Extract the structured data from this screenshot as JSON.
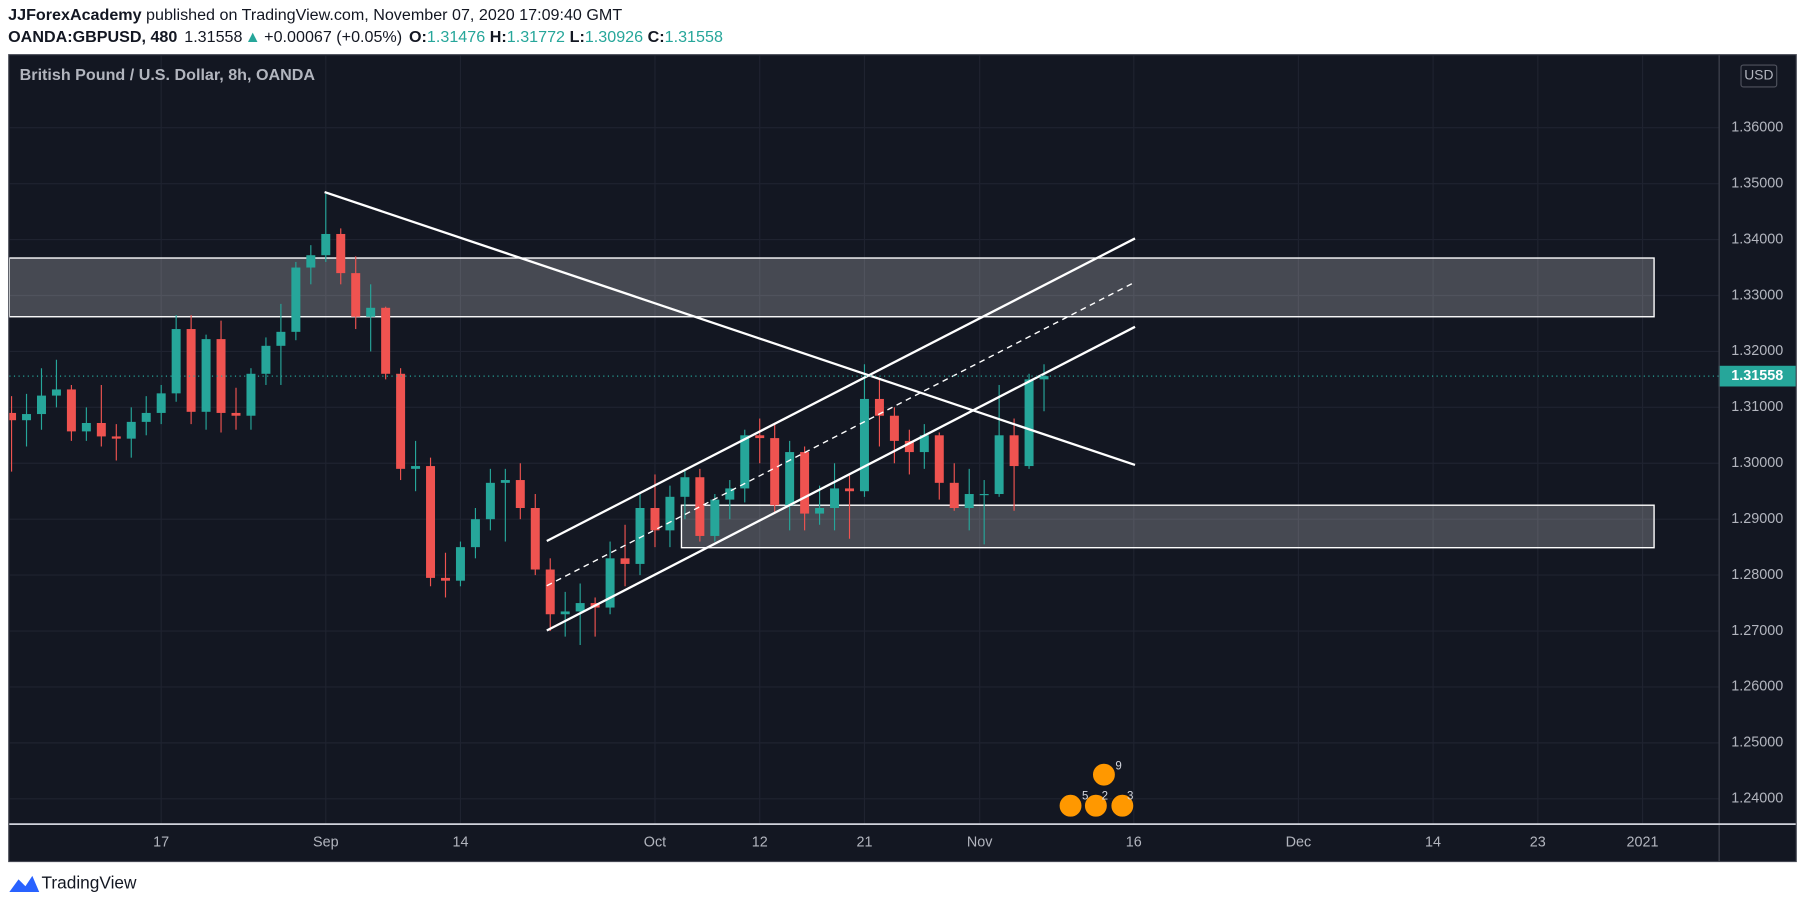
{
  "header": {
    "author": "JJForexAcademy",
    "published": " published on TradingView.com, November 07, 2020 17:09:40 GMT",
    "symbol": "OANDA:GBPUSD, 480",
    "last": "1.31558",
    "change": "+0.00067 (+0.05%)",
    "o_label": "O:",
    "o": "1.31476",
    "h_label": "H:",
    "h": "1.31772",
    "l_label": "L:",
    "l": "1.30926",
    "c_label": "C:",
    "c": "1.31558"
  },
  "footer": {
    "brand": "TradingView"
  },
  "event_badges": [
    "9",
    "5",
    "2",
    "3"
  ],
  "chart_data": {
    "type": "candlestick",
    "title": "British Pound / U.S. Dollar, 8h, OANDA",
    "currency": "USD",
    "up_color": "#26a69a",
    "down_color": "#ef5350",
    "grid": true,
    "x": [
      -10,
      -9,
      -8,
      -7,
      -6,
      -5,
      -4,
      -3,
      -2,
      -1,
      0,
      1,
      2,
      3,
      4,
      5,
      6,
      7,
      8,
      9,
      10,
      11,
      12,
      13,
      14,
      15,
      16,
      17,
      18,
      19,
      20,
      21,
      22,
      23,
      24,
      25,
      26,
      27,
      28,
      29,
      30,
      31,
      32,
      33,
      34,
      35,
      36,
      37,
      38,
      39,
      40,
      41,
      42,
      43,
      44,
      45,
      46,
      47,
      48,
      49,
      50,
      51,
      52,
      53,
      54,
      55,
      56,
      57,
      58,
      59
    ],
    "open": [
      1.309,
      1.3077,
      1.3088,
      1.3121,
      1.3132,
      1.3057,
      1.3072,
      1.3048,
      1.3044,
      1.3074,
      1.309,
      1.3125,
      1.324,
      1.3092,
      1.3222,
      1.309,
      1.3085,
      1.316,
      1.321,
      1.3235,
      1.335,
      1.3372,
      1.341,
      1.334,
      1.3262,
      1.3278,
      1.316,
      1.299,
      1.2995,
      1.2795,
      1.279,
      1.285,
      1.29,
      1.2965,
      1.297,
      1.292,
      1.281,
      1.273,
      1.2735,
      1.275,
      1.2742,
      1.283,
      1.282,
      1.292,
      1.288,
      1.294,
      1.2975,
      1.287,
      1.2935,
      1.2955,
      1.305,
      1.3045,
      1.2925,
      1.302,
      1.291,
      1.292,
      1.2955,
      1.295,
      1.3115,
      1.3085,
      1.304,
      1.302,
      1.305,
      1.2965,
      1.292,
      1.2945,
      1.2945,
      1.305,
      1.2995,
      1.315
    ],
    "high": [
      1.312,
      1.3124,
      1.317,
      1.3185,
      1.314,
      1.31,
      1.314,
      1.307,
      1.31,
      1.312,
      1.314,
      1.3265,
      1.3265,
      1.323,
      1.3255,
      1.3135,
      1.317,
      1.3225,
      1.3285,
      1.336,
      1.339,
      1.3482,
      1.342,
      1.337,
      1.332,
      1.328,
      1.317,
      1.304,
      1.301,
      1.284,
      1.286,
      1.292,
      1.299,
      1.299,
      1.3,
      1.2945,
      1.283,
      1.277,
      1.2785,
      1.276,
      1.286,
      1.289,
      1.2945,
      1.298,
      1.296,
      1.299,
      1.299,
      1.2945,
      1.297,
      1.306,
      1.308,
      1.307,
      1.304,
      1.303,
      1.296,
      1.3,
      1.298,
      1.3177,
      1.315,
      1.31,
      1.306,
      1.307,
      1.3055,
      1.3,
      1.299,
      1.297,
      1.314,
      1.308,
      1.316,
      1.3177
    ],
    "low": [
      1.2985,
      1.303,
      1.306,
      1.31,
      1.304,
      1.304,
      1.303,
      1.3005,
      1.301,
      1.305,
      1.307,
      1.311,
      1.307,
      1.306,
      1.3055,
      1.306,
      1.306,
      1.314,
      1.314,
      1.322,
      1.332,
      1.336,
      1.332,
      1.324,
      1.32,
      1.315,
      1.297,
      1.295,
      1.278,
      1.276,
      1.278,
      1.283,
      1.288,
      1.286,
      1.29,
      1.28,
      1.27,
      1.269,
      1.2675,
      1.269,
      1.273,
      1.278,
      1.28,
      1.285,
      1.285,
      1.29,
      1.286,
      1.286,
      1.29,
      1.293,
      1.3,
      1.291,
      1.288,
      1.288,
      1.289,
      1.288,
      1.2865,
      1.294,
      1.303,
      1.3,
      1.298,
      1.299,
      1.2935,
      1.2915,
      1.288,
      1.2855,
      1.294,
      1.2915,
      1.299,
      1.3093
    ],
    "close": [
      1.3077,
      1.3088,
      1.3121,
      1.3132,
      1.3057,
      1.3072,
      1.3048,
      1.3044,
      1.3074,
      1.309,
      1.3125,
      1.324,
      1.3092,
      1.3222,
      1.309,
      1.3085,
      1.316,
      1.321,
      1.3235,
      1.335,
      1.3372,
      1.341,
      1.334,
      1.3262,
      1.3278,
      1.316,
      1.299,
      1.2995,
      1.2795,
      1.279,
      1.285,
      1.29,
      1.2965,
      1.297,
      1.292,
      1.281,
      1.273,
      1.2735,
      1.275,
      1.2742,
      1.283,
      1.282,
      1.292,
      1.288,
      1.294,
      1.2975,
      1.287,
      1.2935,
      1.2955,
      1.305,
      1.3045,
      1.2925,
      1.302,
      1.291,
      1.292,
      1.2955,
      1.295,
      1.3115,
      1.3085,
      1.304,
      1.302,
      1.305,
      1.2965,
      1.292,
      1.2945,
      1.2945,
      1.305,
      1.2995,
      1.315,
      1.31558
    ],
    "last_price": 1.31558,
    "last_color": "#26a69a",
    "xlim": [
      -10.15,
      104.08
    ],
    "ylim": [
      1.23547,
      1.37296
    ],
    "xticks": [
      {
        "value": 0,
        "label": "17"
      },
      {
        "value": 11,
        "label": "Sep"
      },
      {
        "value": 20,
        "label": "14"
      },
      {
        "value": 33,
        "label": "Oct"
      },
      {
        "value": 40,
        "label": "12"
      },
      {
        "value": 47,
        "label": "21"
      },
      {
        "value": 54.7,
        "label": "Nov"
      },
      {
        "value": 65,
        "label": "16"
      },
      {
        "value": 76,
        "label": "Dec"
      },
      {
        "value": 85,
        "label": "14"
      },
      {
        "value": 92,
        "label": "23"
      },
      {
        "value": 99,
        "label": "2021"
      }
    ],
    "yticks": [
      {
        "value": 1.24,
        "label": "1.24000"
      },
      {
        "value": 1.25,
        "label": "1.25000"
      },
      {
        "value": 1.26,
        "label": "1.26000"
      },
      {
        "value": 1.27,
        "label": "1.27000"
      },
      {
        "value": 1.28,
        "label": "1.28000"
      },
      {
        "value": 1.29,
        "label": "1.29000"
      },
      {
        "value": 1.3,
        "label": "1.30000"
      },
      {
        "value": 1.31,
        "label": "1.31000"
      },
      {
        "value": 1.32,
        "label": "1.32000"
      },
      {
        "value": 1.33,
        "label": "1.33000"
      },
      {
        "value": 1.34,
        "label": "1.34000"
      },
      {
        "value": 1.35,
        "label": "1.35000"
      },
      {
        "value": 1.36,
        "label": "1.36000"
      }
    ],
    "trendlines": [
      {
        "x": [
          10.92,
          65.08
        ],
        "y": [
          1.3485,
          1.2997
        ],
        "style": "solid"
      },
      {
        "x": [
          25.77,
          65.08
        ],
        "y": [
          1.2861,
          1.3402
        ],
        "style": "solid"
      },
      {
        "x": [
          25.77,
          65.08
        ],
        "y": [
          1.2701,
          1.3244
        ],
        "style": "solid"
      },
      {
        "x": [
          25.77,
          65.08
        ],
        "y": [
          1.2781,
          1.3324
        ],
        "style": "dashed"
      }
    ],
    "zones": [
      {
        "x": [
          -10.15,
          99.77
        ],
        "y": [
          1.3262,
          1.3367
        ]
      },
      {
        "x": [
          34.77,
          99.77
        ],
        "y": [
          1.2849,
          1.2925
        ]
      }
    ]
  }
}
